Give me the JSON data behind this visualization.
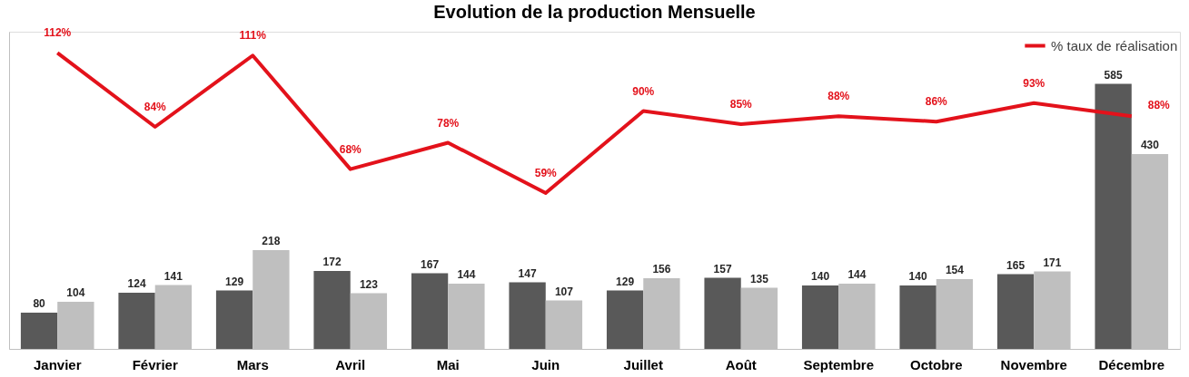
{
  "chart_data": {
    "type": "bar",
    "title": "Evolution de la production Mensuelle",
    "categories": [
      "Janvier",
      "Février",
      "Mars",
      "Avril",
      "Mai",
      "Juin",
      "Juillet",
      "Août",
      "Septembre",
      "Octobre",
      "Novembre",
      "Décembre"
    ],
    "series": [
      {
        "color": "#595959",
        "values": [
          80,
          124,
          129,
          172,
          167,
          147,
          129,
          157,
          140,
          140,
          165,
          585
        ]
      },
      {
        "color": "#bfbfbf",
        "values": [
          104,
          141,
          218,
          123,
          144,
          107,
          156,
          135,
          144,
          154,
          171,
          430
        ]
      },
      {
        "name": "% taux de réalisation",
        "type": "line",
        "axis": "y2",
        "color": "#e3121b",
        "values": [
          112,
          84,
          111,
          68,
          78,
          59,
          90,
          85,
          88,
          86,
          93,
          88
        ],
        "value_labels": [
          "112%",
          "84%",
          "111%",
          "68%",
          "78%",
          "59%",
          "90%",
          "85%",
          "88%",
          "86%",
          "93%",
          "88%"
        ]
      }
    ],
    "data_labels": true,
    "ylim": [
      0,
      700
    ],
    "y2lim": [
      0,
      120
    ],
    "tick_labels": "x",
    "grid": false,
    "legend": "top right",
    "marker": "none"
  }
}
